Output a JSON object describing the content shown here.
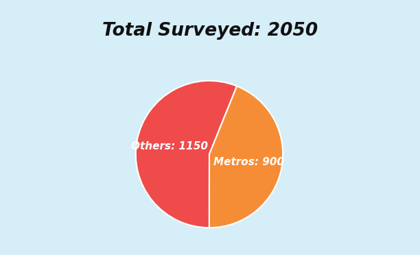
{
  "chart_data": {
    "type": "pie",
    "title": "Total Surveyed: 2050",
    "categories": [
      "Others: 1150",
      "Metros: 900"
    ],
    "values": [
      1150,
      900
    ],
    "colors": [
      "#ef4b4b",
      "#f58d36"
    ]
  }
}
